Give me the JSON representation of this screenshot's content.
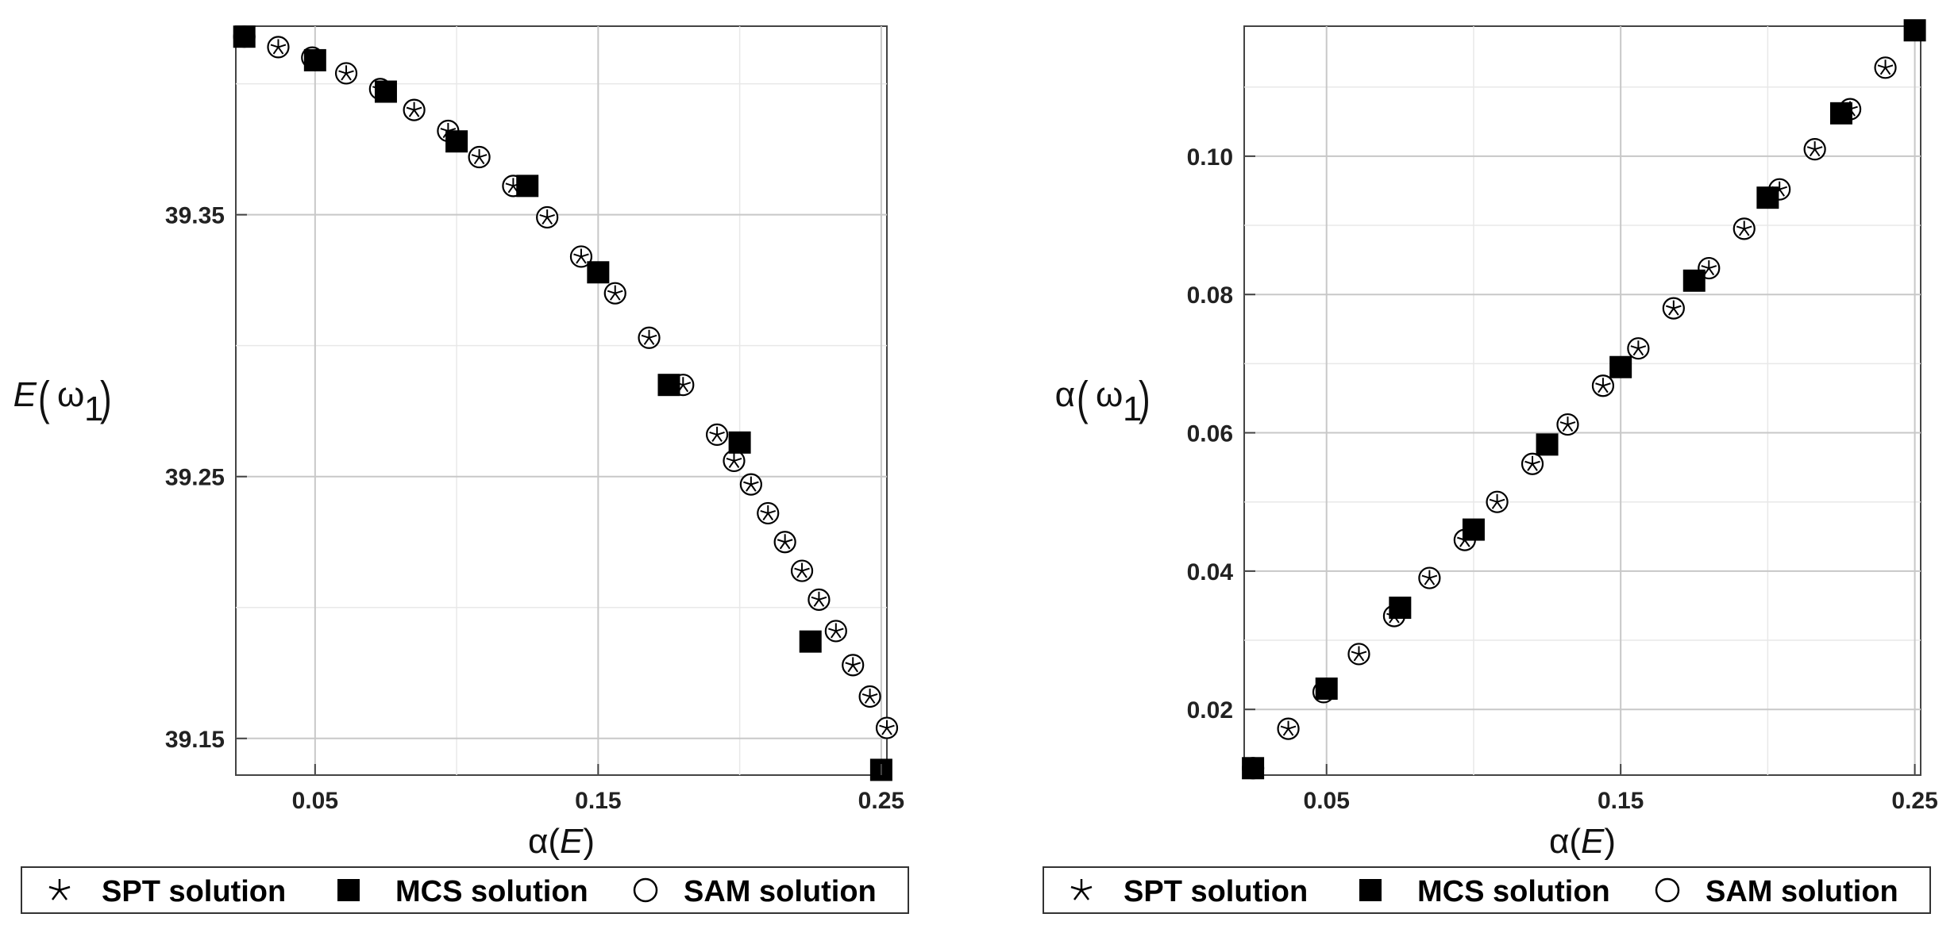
{
  "legend": {
    "spt": "SPT solution",
    "mcs": "MCS solution",
    "sam": "SAM solution"
  },
  "chart_data": [
    {
      "type": "scatter",
      "xlabel_func": "α(",
      "xlabel_var": "E",
      "xlabel_close": ")",
      "ylabel_func": "E",
      "ylabel_arg": "ω",
      "ylabel_sub": "1",
      "xlim": [
        0.022,
        0.252
      ],
      "ylim": [
        39.136,
        39.422
      ],
      "xticks": [
        0.05,
        0.15,
        0.25
      ],
      "xtick_labels": [
        "0.05",
        "0.15",
        "0.25"
      ],
      "yticks": [
        39.15,
        39.25,
        39.35
      ],
      "ytick_labels": [
        "39.15",
        "39.25",
        "39.35"
      ],
      "series": [
        {
          "name": "SPT solution",
          "x": [
            0.025,
            0.037,
            0.049,
            0.061,
            0.073,
            0.085,
            0.097,
            0.108,
            0.12,
            0.132,
            0.144,
            0.156,
            0.168,
            0.18,
            0.192,
            0.198,
            0.204,
            0.21,
            0.216,
            0.222,
            0.228,
            0.234,
            0.24,
            0.246,
            0.252
          ],
          "y": [
            39.418,
            39.414,
            39.41,
            39.404,
            39.398,
            39.39,
            39.382,
            39.372,
            39.361,
            39.349,
            39.334,
            39.32,
            39.303,
            39.285,
            39.266,
            39.256,
            39.247,
            39.236,
            39.225,
            39.214,
            39.203,
            39.191,
            39.178,
            39.166,
            39.154
          ]
        },
        {
          "name": "MCS solution",
          "x": [
            0.025,
            0.05,
            0.075,
            0.1,
            0.125,
            0.15,
            0.175,
            0.2,
            0.225,
            0.25
          ],
          "y": [
            39.418,
            39.409,
            39.397,
            39.378,
            39.361,
            39.328,
            39.285,
            39.263,
            39.187,
            39.138
          ]
        },
        {
          "name": "SAM solution",
          "x": [
            0.025,
            0.037,
            0.049,
            0.061,
            0.073,
            0.085,
            0.097,
            0.108,
            0.12,
            0.132,
            0.144,
            0.156,
            0.168,
            0.18,
            0.192,
            0.198,
            0.204,
            0.21,
            0.216,
            0.222,
            0.228,
            0.234,
            0.24,
            0.246,
            0.252
          ],
          "y": [
            39.418,
            39.414,
            39.41,
            39.404,
            39.398,
            39.39,
            39.382,
            39.372,
            39.361,
            39.349,
            39.334,
            39.32,
            39.303,
            39.285,
            39.266,
            39.256,
            39.247,
            39.236,
            39.225,
            39.214,
            39.203,
            39.191,
            39.178,
            39.166,
            39.154
          ]
        }
      ]
    },
    {
      "type": "scatter",
      "xlabel_func": "α(",
      "xlabel_var": "E",
      "xlabel_close": ")",
      "ylabel_func": "α",
      "ylabel_arg": "ω",
      "ylabel_sub": "1",
      "xlim": [
        0.022,
        0.252
      ],
      "ylim": [
        0.0105,
        0.1188
      ],
      "xticks": [
        0.05,
        0.15,
        0.25
      ],
      "xtick_labels": [
        "0.05",
        "0.15",
        "0.25"
      ],
      "yticks": [
        0.02,
        0.04,
        0.06,
        0.08,
        0.1
      ],
      "ytick_labels": [
        "0.02",
        "0.04",
        "0.06",
        "0.08",
        "0.10"
      ],
      "series": [
        {
          "name": "SPT solution",
          "x": [
            0.025,
            0.037,
            0.049,
            0.061,
            0.073,
            0.085,
            0.097,
            0.108,
            0.12,
            0.132,
            0.144,
            0.156,
            0.168,
            0.18,
            0.192,
            0.204,
            0.216,
            0.228,
            0.24
          ],
          "y": [
            0.0115,
            0.0172,
            0.0225,
            0.028,
            0.0335,
            0.039,
            0.0445,
            0.05,
            0.0555,
            0.0612,
            0.0668,
            0.0722,
            0.078,
            0.0838,
            0.0895,
            0.0952,
            0.101,
            0.1068,
            0.1128
          ]
        },
        {
          "name": "MCS solution",
          "x": [
            0.025,
            0.05,
            0.075,
            0.1,
            0.125,
            0.15,
            0.175,
            0.2,
            0.225,
            0.25
          ],
          "y": [
            0.0115,
            0.023,
            0.0347,
            0.046,
            0.0583,
            0.0695,
            0.082,
            0.094,
            0.1062,
            0.1182
          ]
        },
        {
          "name": "SAM solution",
          "x": [
            0.025,
            0.037,
            0.049,
            0.061,
            0.073,
            0.085,
            0.097,
            0.108,
            0.12,
            0.132,
            0.144,
            0.156,
            0.168,
            0.18,
            0.192,
            0.204,
            0.216,
            0.228,
            0.24
          ],
          "y": [
            0.0115,
            0.0172,
            0.0225,
            0.028,
            0.0335,
            0.039,
            0.0445,
            0.05,
            0.0555,
            0.0612,
            0.0668,
            0.0722,
            0.078,
            0.0838,
            0.0895,
            0.0952,
            0.101,
            0.1068,
            0.1128
          ]
        }
      ]
    }
  ]
}
